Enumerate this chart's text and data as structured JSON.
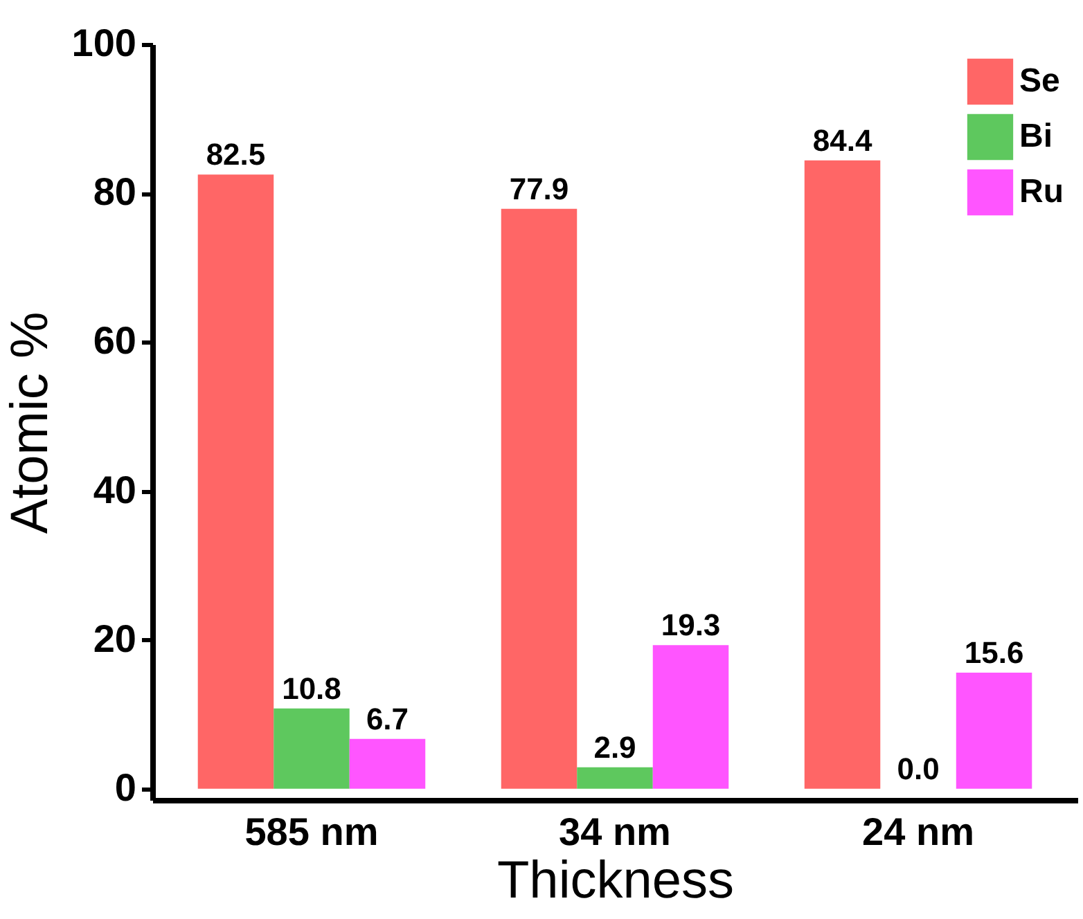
{
  "chart_data": {
    "type": "bar",
    "xlabel": "Thickness",
    "ylabel": "Atomic %",
    "categories": [
      "585 nm",
      "34 nm",
      "24 nm"
    ],
    "series": [
      {
        "name": "Se",
        "color": "#ff6666",
        "values": [
          82.5,
          77.9,
          84.4
        ],
        "value_labels": [
          "82.5",
          "77.9",
          "84.4"
        ]
      },
      {
        "name": "Bi",
        "color": "#5ec85e",
        "values": [
          10.8,
          2.9,
          0.0
        ],
        "value_labels": [
          "10.8",
          "2.9",
          "0.0"
        ]
      },
      {
        "name": "Ru",
        "color": "#ff55ff",
        "values": [
          6.7,
          19.3,
          15.6
        ],
        "value_labels": [
          "6.7",
          "19.3",
          "15.6"
        ]
      }
    ],
    "ylim": [
      -1.5,
      100
    ],
    "yticks": [
      0,
      20,
      40,
      60,
      80,
      100
    ],
    "legend": "top right",
    "grid": false
  }
}
